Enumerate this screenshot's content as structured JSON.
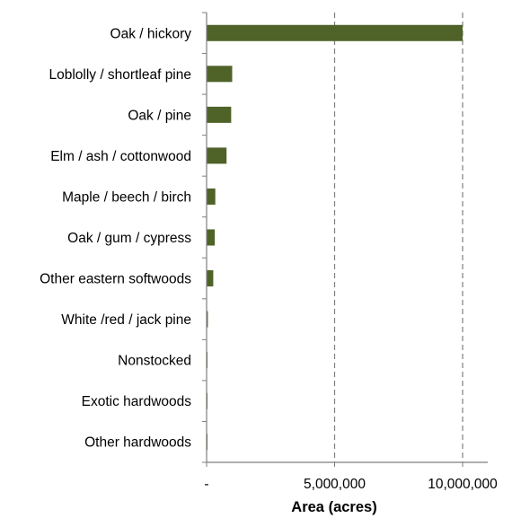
{
  "chart_data": {
    "type": "bar",
    "orientation": "horizontal",
    "categories": [
      "Oak / hickory",
      "Loblolly / shortleaf pine",
      "Oak / pine",
      "Elm / ash / cottonwood",
      "Maple / beech / birch",
      "Oak / gum / cypress",
      "Other eastern softwoods",
      "White /red / jack pine",
      "Nonstocked",
      "Exotic hardwoods",
      "Other hardwoods"
    ],
    "values": [
      10000000,
      1000000,
      960000,
      780000,
      340000,
      320000,
      260000,
      50000,
      30000,
      20000,
      10000
    ],
    "xlabel": "Area (acres)",
    "ylabel": "",
    "xlim": [
      0,
      10000000
    ],
    "xticks": [
      0,
      5000000,
      10000000
    ],
    "xtick_labels": [
      "-",
      "5,000,000",
      "10,000,000"
    ],
    "grid": "vertical dashed",
    "bar_color": "#4f6228",
    "grid_color": "#7f7f7f",
    "axis_color": "#7f7f7f"
  }
}
